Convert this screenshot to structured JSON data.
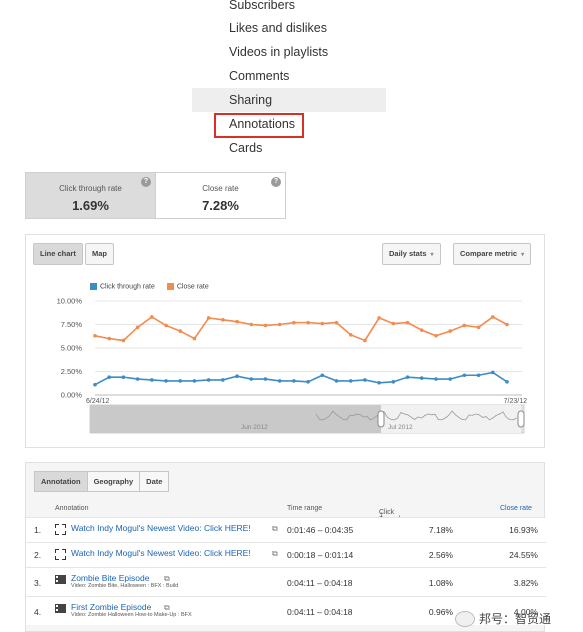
{
  "menu": {
    "items": [
      {
        "label": "Subscribers"
      },
      {
        "label": "Likes and dislikes"
      },
      {
        "label": "Videos in playlists"
      },
      {
        "label": "Comments"
      },
      {
        "label": "Sharing"
      },
      {
        "label": "Annotations"
      },
      {
        "label": "Cards"
      }
    ]
  },
  "metrics": [
    {
      "label": "Click through rate",
      "value": "1.69%",
      "help": "?"
    },
    {
      "label": "Close rate",
      "value": "7.28%",
      "help": "?"
    }
  ],
  "chart_controls": {
    "view_tabs": [
      "Line chart",
      "Map"
    ],
    "interval": "Daily stats",
    "compare": "Compare metric",
    "caret": "▾"
  },
  "chart_data": {
    "type": "line",
    "y_ticks": [
      "10.00%",
      "7.50%",
      "5.00%",
      "2.50%",
      "0.00%"
    ],
    "ylim": [
      0,
      10
    ],
    "x_start_label": "6/24/12",
    "x_end_label": "7/23/12",
    "series": [
      {
        "name": "Click through rate",
        "color": "#3c8dc5",
        "values": [
          1.1,
          1.9,
          1.9,
          1.7,
          1.6,
          1.5,
          1.5,
          1.5,
          1.6,
          1.6,
          2.0,
          1.7,
          1.7,
          1.5,
          1.5,
          1.4,
          2.1,
          1.5,
          1.5,
          1.6,
          1.3,
          1.4,
          1.9,
          1.8,
          1.7,
          1.7,
          2.1,
          2.1,
          2.4,
          1.4
        ]
      },
      {
        "name": "Close rate",
        "color": "#f28b4e",
        "values": [
          6.3,
          6.0,
          5.8,
          7.2,
          8.3,
          7.4,
          6.8,
          6.0,
          8.2,
          8.0,
          7.8,
          7.5,
          7.4,
          7.5,
          7.7,
          7.7,
          7.6,
          7.7,
          6.4,
          5.8,
          8.2,
          7.6,
          7.7,
          6.9,
          6.3,
          6.8,
          7.4,
          7.2,
          8.3,
          7.5
        ]
      }
    ]
  },
  "timeline": {
    "month_labels": [
      "Jun 2012",
      "Jul 2012"
    ]
  },
  "table": {
    "tabs": [
      "Annotation",
      "Geography",
      "Date"
    ],
    "headers": {
      "annotation": "Annotation",
      "time_range": "Time range",
      "ctr": "Click through rate",
      "sort_arrow": "↓",
      "close_rate": "Close rate"
    },
    "rows": [
      {
        "num": "1.",
        "title": "Watch Indy Mogul's Newest Video: Click HERE!",
        "sub": "",
        "time": "0:01:46 – 0:04:35",
        "ctr": "7.18%",
        "close": "16.93%"
      },
      {
        "num": "2.",
        "title": "Watch Indy Mogul's Newest Video: Click HERE!",
        "sub": "",
        "time": "0:00:18 – 0:01:14",
        "ctr": "2.56%",
        "close": "24.55%"
      },
      {
        "num": "3.",
        "title": "Zombie Bite Episode",
        "sub": "Video: Zombie Bite, Halloween : BFX : Build",
        "time": "0:04:11 – 0:04:18",
        "ctr": "1.08%",
        "close": "3.82%"
      },
      {
        "num": "4.",
        "title": "First Zombie Episode",
        "sub": "Video: Zombie Halloween How-to Make-Up : BFX",
        "time": "0:04:11 – 0:04:18",
        "ctr": "0.96%",
        "close": "4.00%"
      }
    ]
  },
  "watermark": {
    "text": "邦号：智贸通"
  }
}
